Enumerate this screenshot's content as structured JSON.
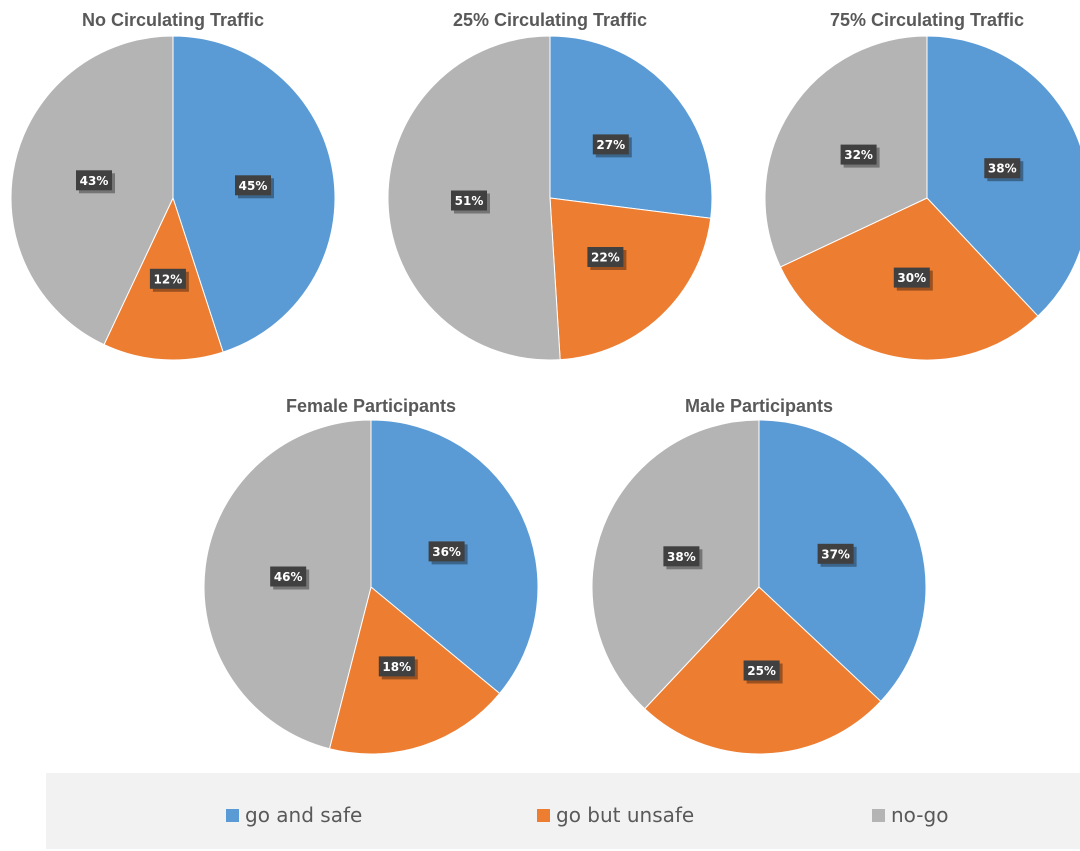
{
  "colors": {
    "go_and_safe": "#5b9bd5",
    "go_but_unsafe": "#ed7d31",
    "no_go": "#b4b4b4",
    "label_bg": "#404040"
  },
  "legend": [
    {
      "name": "go and safe",
      "color": "#5b9bd5"
    },
    {
      "name": "go but unsafe",
      "color": "#ed7d31"
    },
    {
      "name": "no-go",
      "color": "#b4b4b4"
    }
  ],
  "chart_data": [
    {
      "type": "pie",
      "title": "No Circulating Traffic",
      "categories": [
        "go and safe",
        "go but unsafe",
        "no-go"
      ],
      "values": [
        45,
        12,
        43
      ],
      "labels": [
        "45%",
        "12%",
        "43%"
      ]
    },
    {
      "type": "pie",
      "title": "25% Circulating Traffic",
      "categories": [
        "go and safe",
        "go but unsafe",
        "no-go"
      ],
      "values": [
        27,
        22,
        51
      ],
      "labels": [
        "27%",
        "22%",
        "51%"
      ]
    },
    {
      "type": "pie",
      "title": "75% Circulating Traffic",
      "categories": [
        "go and safe",
        "go but unsafe",
        "no-go"
      ],
      "values": [
        38,
        30,
        32
      ],
      "labels": [
        "38%",
        "30%",
        "32%"
      ]
    },
    {
      "type": "pie",
      "title": "Female Participants",
      "categories": [
        "go and safe",
        "go but unsafe",
        "no-go"
      ],
      "values": [
        36,
        18,
        46
      ],
      "labels": [
        "36%",
        "18%",
        "46%"
      ]
    },
    {
      "type": "pie",
      "title": "Male Participants",
      "categories": [
        "go and safe",
        "go but unsafe",
        "no-go"
      ],
      "values": [
        37,
        25,
        38
      ],
      "labels": [
        "37%",
        "25%",
        "38%"
      ]
    }
  ]
}
